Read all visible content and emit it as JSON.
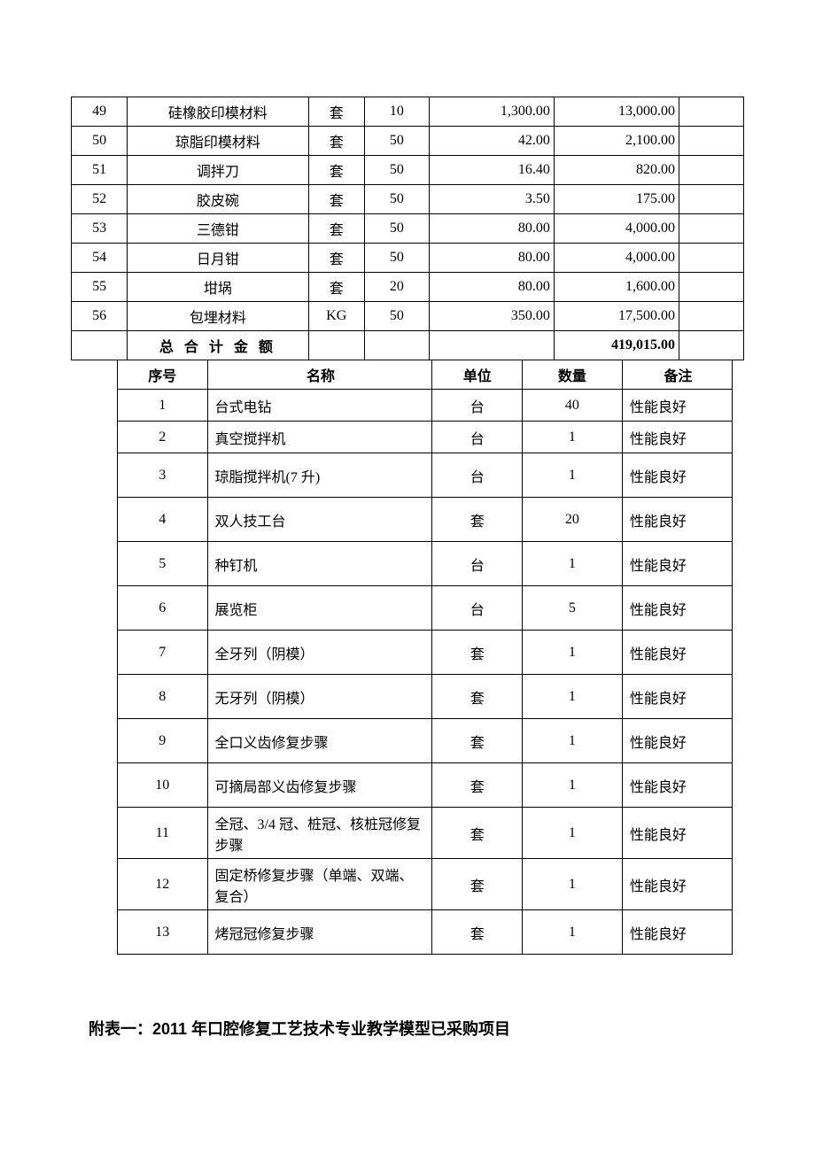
{
  "table1": {
    "rows": [
      {
        "seq": "49",
        "name": "硅橡胶印模材料",
        "unit": "套",
        "qty": "10",
        "price": "1,300.00",
        "total": "13,000.00",
        "note": ""
      },
      {
        "seq": "50",
        "name": "琼脂印模材料",
        "unit": "套",
        "qty": "50",
        "price": "42.00",
        "total": "2,100.00",
        "note": ""
      },
      {
        "seq": "51",
        "name": "调拌刀",
        "unit": "套",
        "qty": "50",
        "price": "16.40",
        "total": "820.00",
        "note": ""
      },
      {
        "seq": "52",
        "name": "胶皮碗",
        "unit": "套",
        "qty": "50",
        "price": "3.50",
        "total": "175.00",
        "note": ""
      },
      {
        "seq": "53",
        "name": "三德钳",
        "unit": "套",
        "qty": "50",
        "price": "80.00",
        "total": "4,000.00",
        "note": ""
      },
      {
        "seq": "54",
        "name": "日月钳",
        "unit": "套",
        "qty": "50",
        "price": "80.00",
        "total": "4,000.00",
        "note": ""
      },
      {
        "seq": "55",
        "name": "坩埚",
        "unit": "套",
        "qty": "20",
        "price": "80.00",
        "total": "1,600.00",
        "note": ""
      },
      {
        "seq": "56",
        "name": "包埋材料",
        "unit": "KG",
        "qty": "50",
        "price": "350.00",
        "total": "17,500.00",
        "note": ""
      }
    ],
    "totalLabel": "总 合 计 金 额",
    "grandTotal": "419,015.00"
  },
  "table2": {
    "headers": {
      "seq": "序号",
      "name": "名称",
      "unit": "单位",
      "qty": "数量",
      "note": "备注"
    },
    "rows": [
      {
        "seq": "1",
        "name": "台式电钻",
        "unit": "台",
        "qty": "40",
        "note": "性能良好",
        "cls": ""
      },
      {
        "seq": "2",
        "name": "真空搅拌机",
        "unit": "台",
        "qty": "1",
        "note": "性能良好",
        "cls": ""
      },
      {
        "seq": "3",
        "name": "琼脂搅拌机(7 升)",
        "unit": "台",
        "qty": "1",
        "note": "性能良好",
        "cls": "tall"
      },
      {
        "seq": "4",
        "name": "双人技工台",
        "unit": "套",
        "qty": "20",
        "note": "性能良好",
        "cls": "tall"
      },
      {
        "seq": "5",
        "name": "种钉机",
        "unit": "台",
        "qty": "1",
        "note": "性能良好",
        "cls": "tall"
      },
      {
        "seq": "6",
        "name": "展览柜",
        "unit": "台",
        "qty": "5",
        "note": "性能良好",
        "cls": "tall"
      },
      {
        "seq": "7",
        "name": "全牙列（阴模）",
        "unit": "套",
        "qty": "1",
        "note": "性能良好",
        "cls": "tall"
      },
      {
        "seq": "8",
        "name": "无牙列（阴模）",
        "unit": "套",
        "qty": "1",
        "note": "性能良好",
        "cls": "tall"
      },
      {
        "seq": "9",
        "name": "全口义齿修复步骤",
        "unit": "套",
        "qty": "1",
        "note": "性能良好",
        "cls": "tall"
      },
      {
        "seq": "10",
        "name": "可摘局部义齿修复步骤",
        "unit": "套",
        "qty": "1",
        "note": "性能良好",
        "cls": "tall"
      },
      {
        "seq": "11",
        "name": "全冠、3/4 冠、桩冠、核桩冠修复步骤",
        "unit": "套",
        "qty": "1",
        "note": "性能良好",
        "cls": "xtall"
      },
      {
        "seq": "12",
        "name": "固定桥修复步骤（单端、双端、复合）",
        "unit": "套",
        "qty": "1",
        "note": "性能良好",
        "cls": "xtall"
      },
      {
        "seq": "13",
        "name": "烤冠冠修复步骤",
        "unit": "套",
        "qty": "1",
        "note": "性能良好",
        "cls": "tall"
      }
    ]
  },
  "appendixTitle": "附表一：2011 年口腔修复工艺技术专业教学模型已采购项目"
}
